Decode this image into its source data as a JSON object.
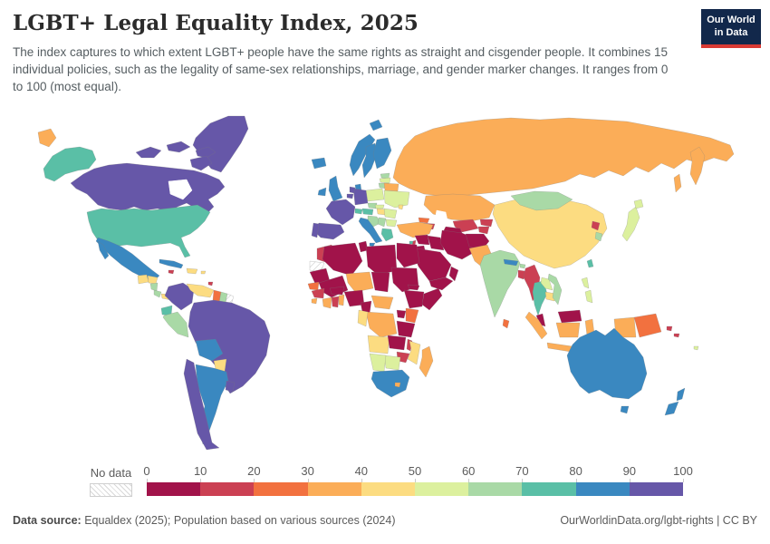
{
  "header": {
    "title": "LGBT+ Legal Equality Index, 2025",
    "subtitle": "The index captures to which extent LGBT+ people have the same rights as straight and cisgender people. It combines 15 individual policies, such as the legality of same-sex relationships, marriage, and gender marker changes. It ranges from 0 to 100 (most equal).",
    "logo": {
      "line1": "Our World",
      "line2": "in Data",
      "bg_color": "#12284b",
      "accent_color": "#d93a34"
    }
  },
  "legend": {
    "no_data_label": "No data",
    "ticks": [
      0,
      10,
      20,
      30,
      40,
      50,
      60,
      70,
      80,
      90,
      100
    ],
    "bin_colors": [
      "#a1134a",
      "#cb4053",
      "#f2713f",
      "#fbad58",
      "#fcdc81",
      "#dcf09e",
      "#a9d9a6",
      "#5abfa6",
      "#3a88c0",
      "#6657a8"
    ]
  },
  "footer": {
    "source_label": "Data source:",
    "source_text": " Equaldex (2025); Population based on various sources (2024)",
    "link_text": "OurWorldinData.org/lgbt-rights | CC BY"
  },
  "chart_data": {
    "type": "choropleth_map",
    "title": "LGBT+ Legal Equality Index, 2025",
    "unit": "index",
    "range": [
      0,
      100
    ],
    "legend_bins": [
      [
        0,
        10
      ],
      [
        10,
        20
      ],
      [
        20,
        30
      ],
      [
        30,
        40
      ],
      [
        40,
        50
      ],
      [
        50,
        60
      ],
      [
        60,
        70
      ],
      [
        70,
        80
      ],
      [
        80,
        90
      ],
      [
        90,
        100
      ]
    ],
    "no_data_regions": [
      "french-guiana",
      "western-sahara"
    ],
    "countries": {
      "greenland": 95,
      "canada": 95,
      "united-states": 75,
      "mexico": 85,
      "cuba": 85,
      "jamaica": 15,
      "hispaniola": 45,
      "puerto-rico": 45,
      "guatemala": 45,
      "honduras": 45,
      "nicaragua": 65,
      "costa-rica": 65,
      "panama": 45,
      "trinidad-and-tobago": 15,
      "colombia": 95,
      "venezuela": 45,
      "guyana": 25,
      "suriname": 65,
      "french-guiana": null,
      "ecuador": 75,
      "peru": 65,
      "brazil": 95,
      "bolivia": 85,
      "paraguay": 45,
      "chile": 95,
      "argentina": 85,
      "uruguay": 95,
      "iceland": 85,
      "ireland": 85,
      "united-kingdom": 85,
      "norway": 85,
      "sweden": 85,
      "finland": 85,
      "denmark": 85,
      "estonia": 65,
      "latvia": 55,
      "lithuania": 65,
      "poland": 55,
      "germany": 95,
      "netherlands": 95,
      "belgium": 95,
      "france": 95,
      "spain": 95,
      "portugal": 95,
      "switzerland": 75,
      "czechia": 65,
      "austria": 75,
      "slovakia": 55,
      "italy": 85,
      "slovenia-croatia": 65,
      "hungary": 45,
      "serbia": 65,
      "romania": 55,
      "bulgaria": 55,
      "greece": 75,
      "ukraine": 55,
      "belarus": 35,
      "moldova": 45,
      "russia": 35,
      "kazakhstan": 35,
      "uzbekistan": 15,
      "turkmenistan": 5,
      "kyrgyzstan": 15,
      "tajikistan": 15,
      "georgia": 25,
      "armenia-azerbaijan": 15,
      "turkey": 35,
      "cyprus": 75,
      "syria": 5,
      "lebanon": 15,
      "israel": 75,
      "jordan": 5,
      "iraq": 5,
      "iran": 5,
      "afghanistan": 5,
      "pakistan": 35,
      "saudi-arabia": 5,
      "yemen": 5,
      "oman": 5,
      "india": 65,
      "nepal": 85,
      "bhutan": 65,
      "bangladesh": 15,
      "sri-lanka": 25,
      "myanmar": 15,
      "thailand": 75,
      "laos": 55,
      "cambodia": 45,
      "vietnam": 62,
      "china": 45,
      "mongolia": 65,
      "north-korea": 15,
      "south-korea": 65,
      "japan": 55,
      "taiwan": 75,
      "philippines": 55,
      "malaysia": 5,
      "malaysia-borneo": 5,
      "indonesia": 35,
      "papua-new-guinea": 25,
      "solomon-islands": 15,
      "fiji": 55,
      "australia": 85,
      "new-zealand": 85,
      "morocco": 15,
      "western-sahara": null,
      "algeria": 5,
      "tunisia": 5,
      "libya": 5,
      "egypt": 5,
      "mauritania": 5,
      "mali": 5,
      "niger": 35,
      "chad": 5,
      "sudan": 5,
      "eritrea": 5,
      "ethiopia": 5,
      "somalia": 5,
      "senegal": 25,
      "guinea": 15,
      "sierra-leone": 35,
      "ivory-coast": 35,
      "ghana": 15,
      "benin-togo": 35,
      "burkina-faso": 5,
      "nigeria": 5,
      "cameroon": 5,
      "central-african-republic": 35,
      "drc": 35,
      "gabon-congo": 45,
      "uganda": 5,
      "kenya": 25,
      "tanzania": 5,
      "angola": 45,
      "zambia": 5,
      "malawi": 15,
      "mozambique": 45,
      "zimbabwe": 15,
      "botswana": 55,
      "namibia": 55,
      "south-africa": 85,
      "lesotho": 35,
      "madagascar": 35
    }
  }
}
